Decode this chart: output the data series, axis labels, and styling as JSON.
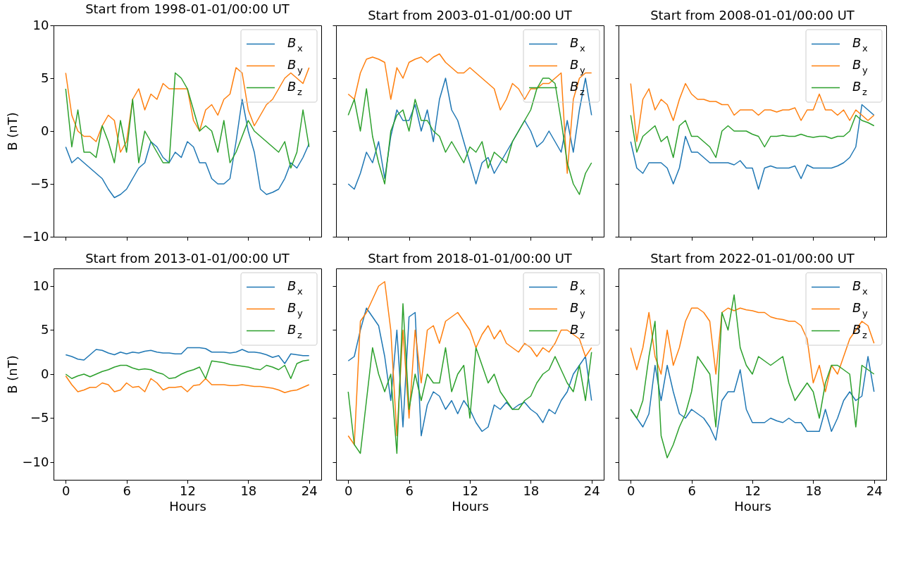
{
  "chart_data": [
    {
      "type": "line",
      "title": "Start from 1998-01-01/00:00 UT",
      "ylabel": "B (nT)",
      "tick_labels": "y",
      "legend": "top right",
      "xlim": [
        -1.2,
        25.2
      ],
      "xticks": [
        0,
        6,
        12,
        18,
        24
      ],
      "ylim": [
        -10,
        10
      ],
      "yticks": [
        -10,
        -5,
        0,
        5,
        10
      ],
      "x": [
        0,
        0.6,
        1.2,
        1.8,
        2.4,
        3,
        3.6,
        4.2,
        4.8,
        5.4,
        6,
        6.6,
        7.2,
        7.8,
        8.4,
        9,
        9.6,
        10.2,
        10.8,
        11.4,
        12,
        12.6,
        13.2,
        13.8,
        14.4,
        15,
        15.6,
        16.2,
        16.8,
        17.4,
        18,
        18.6,
        19.2,
        19.8,
        20.4,
        21,
        21.6,
        22.2,
        22.8,
        23.4,
        24
      ],
      "series": [
        {
          "name": "B$_{x}$",
          "color": "#1f77b4",
          "values": [
            -1.5,
            -3,
            -2.5,
            -3,
            -3.5,
            -4,
            -4.5,
            -5.5,
            -6.3,
            -6,
            -5.5,
            -4.5,
            -3.5,
            -3,
            -1,
            -1.5,
            -2.5,
            -3,
            -2,
            -2.5,
            -1,
            -1.5,
            -3,
            -3,
            -4.5,
            -5,
            -5,
            -4.5,
            -1,
            3,
            0,
            -2,
            -5.5,
            -6,
            -5.8,
            -5.5,
            -4.5,
            -3,
            -3.5,
            -2.5,
            -1.2
          ]
        },
        {
          "name": "B$_{y}$",
          "color": "#ff7f0e",
          "values": [
            5.5,
            1.5,
            0,
            -0.5,
            -0.5,
            -1,
            0.5,
            1.5,
            1,
            -2,
            -1,
            3,
            4,
            2,
            3.5,
            3,
            4.5,
            4,
            4,
            4,
            4,
            1,
            0,
            2,
            2.5,
            1.5,
            3,
            3.5,
            6,
            5.5,
            2,
            0.5,
            1.5,
            2.5,
            3,
            4,
            5,
            5.5,
            5,
            4.5,
            6
          ]
        },
        {
          "name": "B$_{z}$",
          "color": "#2ca02c",
          "values": [
            4,
            -1.5,
            2,
            -2,
            -2,
            -2.5,
            0.5,
            -1,
            -3,
            1,
            -2,
            3,
            -3,
            0,
            -1,
            -2,
            -3,
            -3,
            5.5,
            5,
            4,
            2,
            0,
            0.5,
            0,
            -2,
            1,
            -3,
            -2,
            -0.5,
            1,
            0,
            -0.5,
            -1,
            -1.5,
            -2,
            -1,
            -3.5,
            -2,
            2,
            -1.5
          ]
        }
      ]
    },
    {
      "type": "line",
      "title": "Start from 2003-01-01/00:00 UT",
      "tick_labels": false,
      "legend": "top right",
      "xlim": [
        -1.2,
        25.2
      ],
      "xticks": [
        0,
        6,
        12,
        18,
        24
      ],
      "ylim": [
        -10,
        10
      ],
      "yticks": [
        -10,
        -5,
        0,
        5,
        10
      ],
      "x": [
        0,
        0.6,
        1.2,
        1.8,
        2.4,
        3,
        3.6,
        4.2,
        4.8,
        5.4,
        6,
        6.6,
        7.2,
        7.8,
        8.4,
        9,
        9.6,
        10.2,
        10.8,
        11.4,
        12,
        12.6,
        13.2,
        13.8,
        14.4,
        15,
        15.6,
        16.2,
        16.8,
        17.4,
        18,
        18.6,
        19.2,
        19.8,
        20.4,
        21,
        21.6,
        22.2,
        22.8,
        23.4,
        24
      ],
      "series": [
        {
          "name": "B$_{x}$",
          "color": "#1f77b4",
          "values": [
            -5,
            -5.5,
            -4,
            -2,
            -3,
            -1,
            -4.5,
            -0.5,
            2,
            1,
            1,
            2.5,
            0,
            2,
            -1,
            3,
            5,
            2,
            1,
            -1,
            -3,
            -5,
            -3,
            -2.5,
            -4,
            -3,
            -2,
            -1,
            0,
            1,
            0,
            -1.5,
            -1,
            0,
            -1,
            -2,
            1,
            -2,
            2,
            5,
            1.5
          ]
        },
        {
          "name": "B$_{y}$",
          "color": "#ff7f0e",
          "values": [
            3.5,
            3,
            5.5,
            6.8,
            7,
            6.8,
            6.5,
            3,
            6,
            5,
            6.5,
            6.8,
            7,
            6.5,
            7,
            7.3,
            6.5,
            6,
            5.5,
            5.5,
            6,
            5.5,
            5,
            4.5,
            4,
            2,
            3,
            4.5,
            4,
            3,
            4,
            4,
            4.5,
            4.5,
            5,
            5.5,
            -4,
            3,
            5,
            5.5,
            5.5
          ]
        },
        {
          "name": "B$_{z}$",
          "color": "#2ca02c",
          "values": [
            1.5,
            3,
            0,
            4,
            -0.5,
            -3,
            -5,
            0,
            1.5,
            2,
            0,
            3,
            1,
            1,
            0,
            -0.5,
            -2,
            -1,
            -2,
            -3,
            -1.5,
            -2,
            -1,
            -3.5,
            -2,
            -2.5,
            -3,
            -1,
            0,
            1,
            2,
            4,
            5,
            5,
            4.5,
            1,
            -3,
            -5,
            -6,
            -4,
            -3
          ]
        }
      ]
    },
    {
      "type": "line",
      "title": "Start from 2008-01-01/00:00 UT",
      "tick_labels": false,
      "legend": "top right",
      "xlim": [
        -1.2,
        25.2
      ],
      "xticks": [
        0,
        6,
        12,
        18,
        24
      ],
      "ylim": [
        -10,
        10
      ],
      "yticks": [
        -10,
        -5,
        0,
        5,
        10
      ],
      "x": [
        0,
        0.6,
        1.2,
        1.8,
        2.4,
        3,
        3.6,
        4.2,
        4.8,
        5.4,
        6,
        6.6,
        7.2,
        7.8,
        8.4,
        9,
        9.6,
        10.2,
        10.8,
        11.4,
        12,
        12.6,
        13.2,
        13.8,
        14.4,
        15,
        15.6,
        16.2,
        16.8,
        17.4,
        18,
        18.6,
        19.2,
        19.8,
        20.4,
        21,
        21.6,
        22.2,
        22.8,
        23.4,
        24
      ],
      "series": [
        {
          "name": "B$_{x}$",
          "color": "#1f77b4",
          "values": [
            -1,
            -3.5,
            -4,
            -3,
            -3,
            -3,
            -3.5,
            -5,
            -3.5,
            -0.5,
            -2,
            -2,
            -2.5,
            -3,
            -3,
            -3,
            -3,
            -3.2,
            -2.8,
            -3.5,
            -3.5,
            -5.5,
            -3.5,
            -3.3,
            -3.5,
            -3.5,
            -3.5,
            -3.3,
            -4.5,
            -3.2,
            -3.5,
            -3.5,
            -3.5,
            -3.5,
            -3.3,
            -3,
            -2.5,
            -1.5,
            2.5,
            2,
            1.5
          ]
        },
        {
          "name": "B$_{y}$",
          "color": "#ff7f0e",
          "values": [
            4.5,
            -1,
            3,
            4,
            2,
            3,
            2.5,
            1,
            3,
            4.5,
            3.5,
            3,
            3,
            2.8,
            2.8,
            2.5,
            2.5,
            1.5,
            2,
            2,
            2,
            1.5,
            2,
            2,
            1.8,
            2,
            2,
            2.2,
            1,
            2,
            2,
            3.5,
            2,
            2,
            1.5,
            2,
            1,
            2,
            1.5,
            1,
            1.5
          ]
        },
        {
          "name": "B$_{z}$",
          "color": "#2ca02c",
          "values": [
            1.5,
            -2,
            -0.5,
            0,
            0.5,
            -1,
            -0.5,
            -2.5,
            0.5,
            1,
            -0.5,
            -0.5,
            -1,
            -1.5,
            -2.5,
            0,
            0.5,
            0,
            0,
            0,
            -0.3,
            -0.5,
            -1.5,
            -0.5,
            -0.5,
            -0.4,
            -0.5,
            -0.5,
            -0.3,
            -0.5,
            -0.6,
            -0.5,
            -0.5,
            -0.7,
            -0.5,
            -0.5,
            0,
            1.5,
            1,
            0.8,
            0.5
          ]
        }
      ]
    },
    {
      "type": "line",
      "title": "Start from 2013-01-01/00:00 UT",
      "xlabel": "Hours",
      "ylabel": "B (nT)",
      "legend": "top right",
      "xlim": [
        -1.2,
        25.2
      ],
      "xticks": [
        0,
        6,
        12,
        18,
        24
      ],
      "ylim": [
        -12,
        12
      ],
      "yticks": [
        -10,
        -5,
        0,
        5,
        10
      ],
      "x": [
        0,
        0.6,
        1.2,
        1.8,
        2.4,
        3,
        3.6,
        4.2,
        4.8,
        5.4,
        6,
        6.6,
        7.2,
        7.8,
        8.4,
        9,
        9.6,
        10.2,
        10.8,
        11.4,
        12,
        12.6,
        13.2,
        13.8,
        14.4,
        15,
        15.6,
        16.2,
        16.8,
        17.4,
        18,
        18.6,
        19.2,
        19.8,
        20.4,
        21,
        21.6,
        22.2,
        22.8,
        23.4,
        24
      ],
      "series": [
        {
          "name": "B$_{x}$",
          "color": "#1f77b4",
          "values": [
            2.2,
            2,
            1.7,
            1.6,
            2.2,
            2.8,
            2.7,
            2.4,
            2.2,
            2.5,
            2.3,
            2.5,
            2.4,
            2.6,
            2.7,
            2.5,
            2.4,
            2.4,
            2.3,
            2.3,
            3,
            3,
            3,
            2.9,
            2.5,
            2.5,
            2.5,
            2.4,
            2.5,
            2.8,
            2.5,
            2.5,
            2.4,
            2.2,
            1.9,
            2.1,
            1.2,
            2.3,
            2.2,
            2.1,
            2.1
          ]
        },
        {
          "name": "B$_{y}$",
          "color": "#ff7f0e",
          "values": [
            -0.2,
            -1.2,
            -2,
            -1.8,
            -1.5,
            -1.5,
            -1,
            -1.2,
            -2,
            -1.8,
            -1,
            -1.5,
            -1.4,
            -2,
            -0.5,
            -1,
            -1.8,
            -1.5,
            -1.5,
            -1.4,
            -2,
            -1.3,
            -1.2,
            -0.5,
            -1.2,
            -1.2,
            -1.2,
            -1.3,
            -1.3,
            -1.2,
            -1.3,
            -1.4,
            -1.4,
            -1.5,
            -1.6,
            -1.8,
            -2.1,
            -1.9,
            -1.8,
            -1.5,
            -1.2
          ]
        },
        {
          "name": "B$_{z}$",
          "color": "#2ca02c",
          "values": [
            0,
            -0.5,
            -0.2,
            0,
            -0.3,
            0,
            0.3,
            0.5,
            0.8,
            1,
            1,
            0.7,
            0.5,
            0.6,
            0.5,
            0.2,
            0,
            -0.5,
            -0.4,
            0,
            0.3,
            0.5,
            0.8,
            -0.5,
            1.5,
            1.4,
            1.3,
            1.1,
            1,
            0.9,
            0.8,
            0.6,
            0.5,
            1,
            0.8,
            0.5,
            1,
            -0.5,
            1.2,
            1.5,
            1.6
          ]
        }
      ]
    },
    {
      "type": "line",
      "title": "Start from 2018-01-01/00:00 UT",
      "xlabel": "Hours",
      "tick_labels": "x",
      "legend": "top right",
      "xlim": [
        -1.2,
        25.2
      ],
      "xticks": [
        0,
        6,
        12,
        18,
        24
      ],
      "ylim": [
        -12,
        12
      ],
      "yticks": [
        -10,
        -5,
        0,
        5,
        10
      ],
      "x": [
        0,
        0.6,
        1.2,
        1.8,
        2.4,
        3,
        3.6,
        4.2,
        4.8,
        5.4,
        6,
        6.6,
        7.2,
        7.8,
        8.4,
        9,
        9.6,
        10.2,
        10.8,
        11.4,
        12,
        12.6,
        13.2,
        13.8,
        14.4,
        15,
        15.6,
        16.2,
        16.8,
        17.4,
        18,
        18.6,
        19.2,
        19.8,
        20.4,
        21,
        21.6,
        22.2,
        22.8,
        23.4,
        24
      ],
      "series": [
        {
          "name": "B$_{x}$",
          "color": "#1f77b4",
          "values": [
            1.5,
            2,
            5,
            7.5,
            6.5,
            5.5,
            2,
            -3,
            5,
            -6,
            6.5,
            7,
            -7,
            -3.5,
            -2,
            -2.5,
            -4,
            -3,
            -4.5,
            -3,
            -4,
            -5.5,
            -6.5,
            -6,
            -3.5,
            -4,
            -3.2,
            -4,
            -3.5,
            -3.2,
            -4,
            -4.5,
            -5.5,
            -4,
            -4.5,
            -3,
            -2,
            0,
            1,
            2,
            -3
          ]
        },
        {
          "name": "B$_{y}$",
          "color": "#ff7f0e",
          "values": [
            -7,
            -8,
            6,
            7,
            8.5,
            10,
            10.5,
            5,
            -7,
            5,
            -5,
            5,
            -1,
            5,
            5.5,
            3.5,
            6,
            6.5,
            7,
            6,
            5,
            3,
            4.5,
            5.5,
            4,
            5,
            3.5,
            3,
            2.5,
            3.5,
            3,
            2,
            3,
            2.5,
            3.5,
            5,
            5,
            4.5,
            4,
            2,
            3
          ]
        },
        {
          "name": "B$_{z}$",
          "color": "#2ca02c",
          "values": [
            -2,
            -8,
            -9,
            -3,
            3,
            0,
            -2,
            0,
            -9,
            8,
            -4,
            0,
            -3,
            0,
            -1,
            -1,
            3,
            -2,
            0,
            1,
            -5,
            3,
            1,
            -1,
            0,
            -2,
            -3,
            -4,
            -4,
            -3,
            -2.5,
            -1,
            0,
            0.5,
            2,
            0.5,
            -1,
            -2,
            1,
            -3,
            2.5
          ]
        }
      ]
    },
    {
      "type": "line",
      "title": "Start from 2022-01-01/00:00 UT",
      "xlabel": "Hours",
      "tick_labels": "x",
      "legend": "top right",
      "xlim": [
        -1.2,
        25.2
      ],
      "xticks": [
        0,
        6,
        12,
        18,
        24
      ],
      "ylim": [
        -12,
        12
      ],
      "yticks": [
        -10,
        -5,
        0,
        5,
        10
      ],
      "x": [
        0,
        0.6,
        1.2,
        1.8,
        2.4,
        3,
        3.6,
        4.2,
        4.8,
        5.4,
        6,
        6.6,
        7.2,
        7.8,
        8.4,
        9,
        9.6,
        10.2,
        10.8,
        11.4,
        12,
        12.6,
        13.2,
        13.8,
        14.4,
        15,
        15.6,
        16.2,
        16.8,
        17.4,
        18,
        18.6,
        19.2,
        19.8,
        20.4,
        21,
        21.6,
        22.2,
        22.8,
        23.4,
        24
      ],
      "series": [
        {
          "name": "B$_{x}$",
          "color": "#1f77b4",
          "values": [
            -4,
            -5,
            -6,
            -4.5,
            1,
            -3,
            1,
            -2,
            -4.5,
            -5,
            -4,
            -4.5,
            -5,
            -6,
            -7.5,
            -3,
            -2,
            -2,
            0.5,
            -4,
            -5.5,
            -5.5,
            -5.5,
            -5,
            -5.3,
            -5.5,
            -5,
            -5.5,
            -5.5,
            -6.5,
            -6.5,
            -6.5,
            -4,
            -6.5,
            -5,
            -3,
            -2,
            -3,
            -2.5,
            2,
            -2
          ]
        },
        {
          "name": "B$_{y}$",
          "color": "#ff7f0e",
          "values": [
            3,
            0.5,
            3,
            7,
            2,
            0,
            5,
            1,
            3,
            6,
            7.5,
            7.5,
            7,
            6,
            0,
            7,
            7.5,
            7.2,
            7.5,
            7.3,
            7.2,
            7,
            7,
            6.5,
            6.3,
            6.2,
            6,
            6,
            5.5,
            4,
            -1,
            1,
            -2,
            1,
            0,
            2,
            4,
            5,
            6,
            5.5,
            3.5
          ]
        },
        {
          "name": "B$_{z}$",
          "color": "#2ca02c",
          "values": [
            -4,
            -5,
            -3,
            2,
            6,
            -7,
            -9.5,
            -8,
            -6,
            -4.5,
            -2,
            2,
            1,
            0,
            -6,
            7,
            5,
            9,
            3,
            1,
            0,
            2,
            1.5,
            1,
            1.5,
            2,
            -1,
            -3,
            -2,
            -1,
            -2,
            -5,
            -1,
            1,
            1,
            0.5,
            0,
            -6,
            1,
            0.5,
            0
          ]
        }
      ]
    }
  ]
}
